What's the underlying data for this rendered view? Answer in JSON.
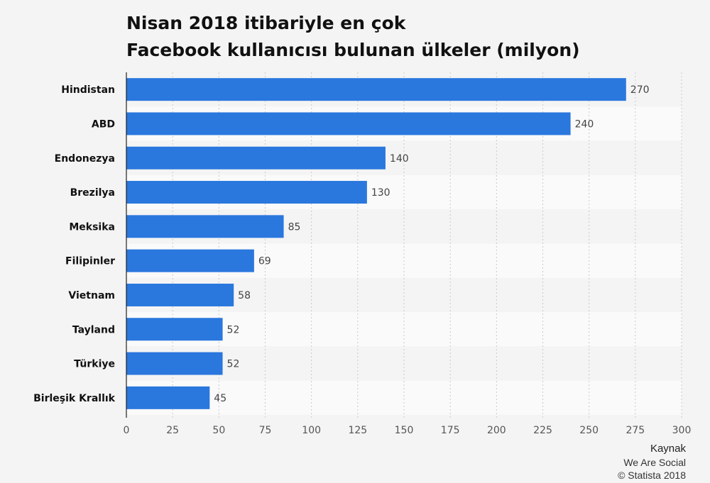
{
  "chart_data": {
    "type": "bar",
    "orientation": "horizontal",
    "title_lines": [
      "Nisan 2018 itibariyle en çok",
      "Facebook kullanıcısı bulunan ülkeler (milyon)"
    ],
    "categories": [
      "Hindistan",
      "ABD",
      "Endonezya",
      "Brezilya",
      "Meksika",
      "Filipinler",
      "Vietnam",
      "Tayland",
      "Türkiye",
      "Birleşik Krallık"
    ],
    "values": [
      270,
      240,
      140,
      130,
      85,
      69,
      58,
      52,
      52,
      45
    ],
    "xlim": [
      0,
      300
    ],
    "xticks": [
      "0",
      "25",
      "50",
      "75",
      "100",
      "125",
      "150",
      "175",
      "200",
      "225",
      "250",
      "275",
      "300"
    ],
    "grid": true,
    "bar_color": "#2a77de"
  },
  "source": {
    "heading": "Kaynak",
    "lines": [
      "We Are Social",
      "© Statista 2018"
    ]
  }
}
